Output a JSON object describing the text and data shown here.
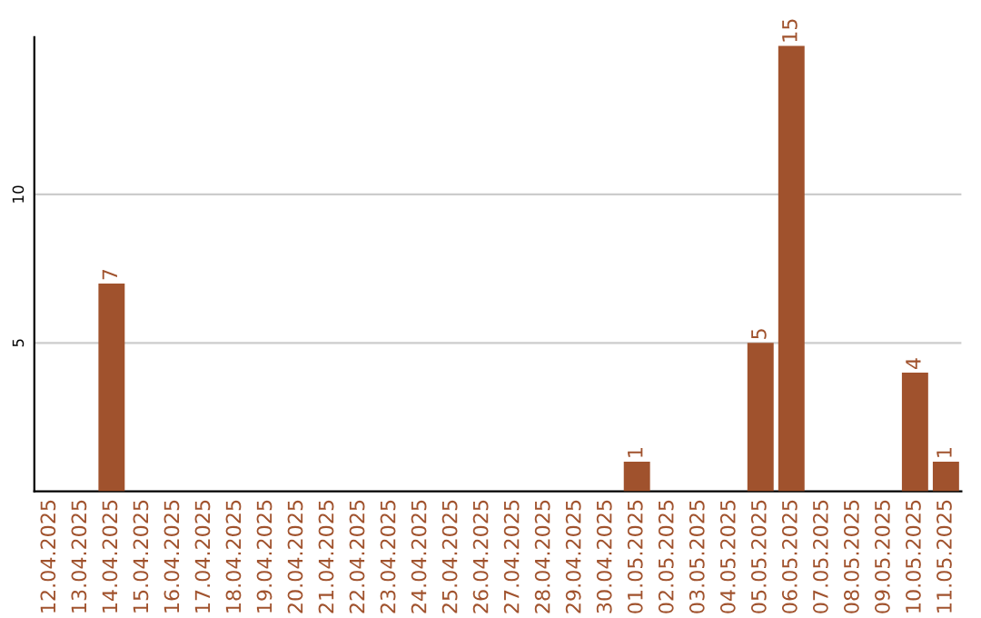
{
  "chart_data": {
    "type": "bar",
    "categories": [
      "12.04.2025",
      "13.04.2025",
      "14.04.2025",
      "15.04.2025",
      "16.04.2025",
      "17.04.2025",
      "18.04.2025",
      "19.04.2025",
      "20.04.2025",
      "21.04.2025",
      "22.04.2025",
      "23.04.2025",
      "24.04.2025",
      "25.04.2025",
      "26.04.2025",
      "27.04.2025",
      "28.04.2025",
      "29.04.2025",
      "30.04.2025",
      "01.05.2025",
      "02.05.2025",
      "03.05.2025",
      "04.05.2025",
      "05.05.2025",
      "06.05.2025",
      "07.05.2025",
      "08.05.2025",
      "09.05.2025",
      "10.05.2025",
      "11.05.2025"
    ],
    "values": [
      0,
      0,
      7,
      0,
      0,
      0,
      0,
      0,
      0,
      0,
      0,
      0,
      0,
      0,
      0,
      0,
      0,
      0,
      0,
      1,
      0,
      0,
      0,
      5,
      15,
      0,
      0,
      0,
      4,
      1
    ],
    "value_labels": [
      null,
      null,
      "7",
      null,
      null,
      null,
      null,
      null,
      null,
      null,
      null,
      null,
      null,
      null,
      null,
      null,
      null,
      null,
      null,
      "1",
      null,
      null,
      null,
      "5",
      "15",
      null,
      null,
      null,
      "4",
      "1"
    ],
    "color": "#a0522d",
    "ylim": [
      0,
      15.3
    ],
    "yticks": [
      5,
      10
    ],
    "grid": "y"
  }
}
